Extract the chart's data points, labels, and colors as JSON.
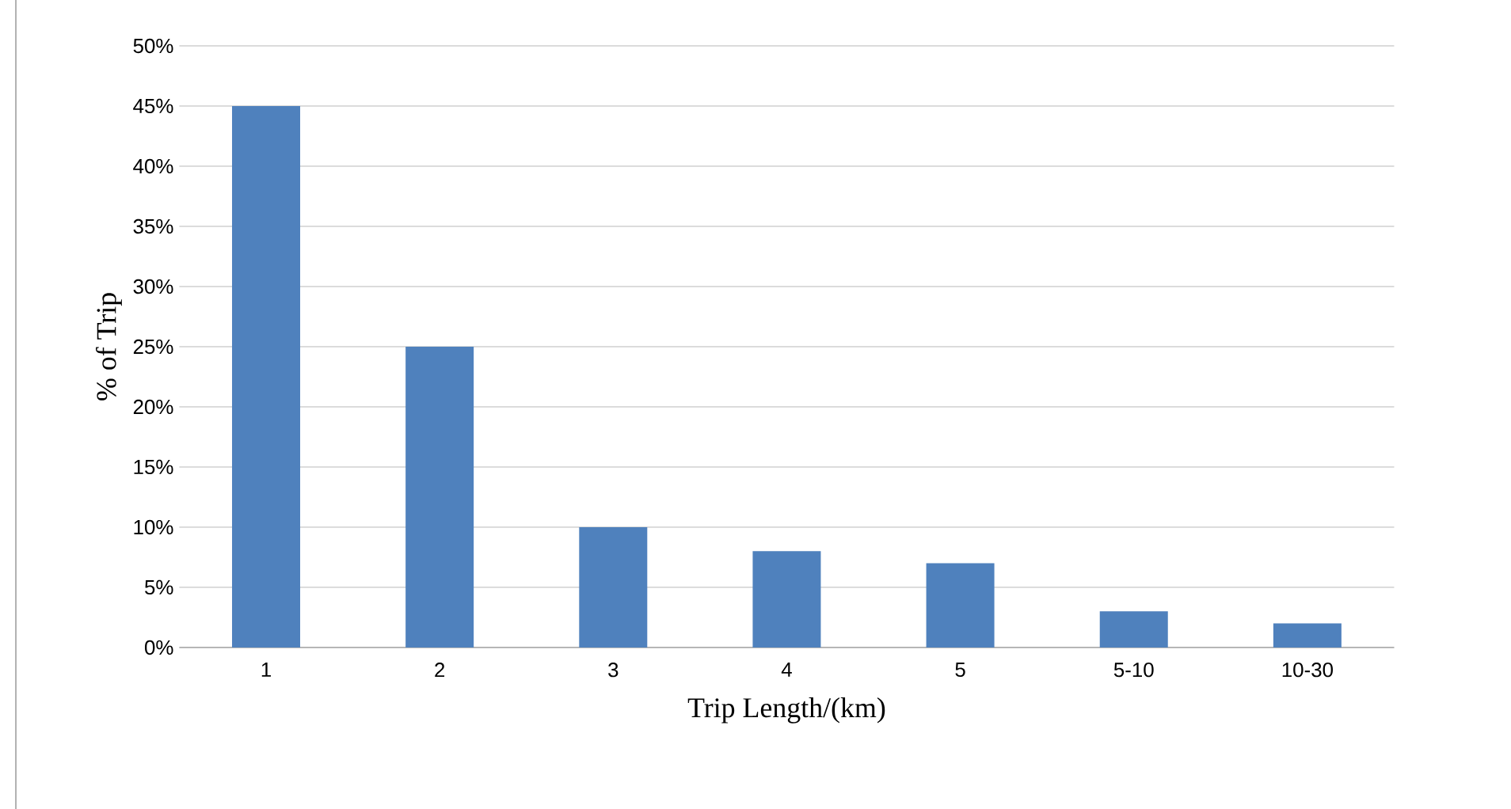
{
  "chart_data": {
    "type": "bar",
    "xlabel": "Trip Length/(km)",
    "ylabel": "% of Trip",
    "categories": [
      "1",
      "2",
      "3",
      "4",
      "5",
      "5-10",
      "10-30"
    ],
    "values": [
      45,
      25,
      10,
      8,
      7,
      3,
      2
    ],
    "color": "#4f81bd",
    "ylim": [
      0,
      50
    ],
    "yticks": [
      {
        "value": 0,
        "label": "0%"
      },
      {
        "value": 5,
        "label": "5%"
      },
      {
        "value": 10,
        "label": "10%"
      },
      {
        "value": 15,
        "label": "15%"
      },
      {
        "value": 20,
        "label": "20%"
      },
      {
        "value": 25,
        "label": "25%"
      },
      {
        "value": 30,
        "label": "30%"
      },
      {
        "value": 35,
        "label": "35%"
      },
      {
        "value": 40,
        "label": "40%"
      },
      {
        "value": 45,
        "label": "45%"
      },
      {
        "value": 50,
        "label": "50%"
      }
    ],
    "grid": "y"
  }
}
